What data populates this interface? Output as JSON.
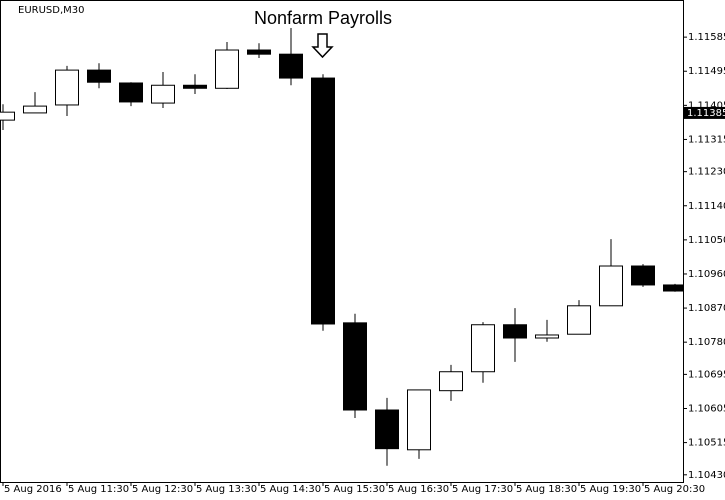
{
  "chart_data": {
    "type": "candlestick",
    "symbol_label": "EURUSD,M30",
    "annotation": "Nonfarm Payrolls",
    "categories": [
      "5 Aug 2016",
      null,
      "5 Aug 11:30",
      null,
      "5 Aug 12:30",
      null,
      "5 Aug 13:30",
      null,
      "5 Aug 14:30",
      null,
      "5 Aug 15:30",
      null,
      "5 Aug 16:30",
      null,
      "5 Aug 17:30",
      null,
      "5 Aug 18:30",
      null,
      "5 Aug 19:30",
      null,
      "5 Aug 20:30",
      null
    ],
    "open": [
      1.11366,
      1.11385,
      1.11406,
      1.11498,
      1.11464,
      1.11411,
      1.11458,
      1.1145,
      1.11551,
      1.1154,
      1.11477,
      1.10831,
      1.10601,
      1.10496,
      1.10652,
      1.10702,
      1.10826,
      1.10791,
      1.10801,
      1.10876,
      1.10981,
      1.10931
    ],
    "high": [
      1.11408,
      1.1144,
      1.11509,
      1.11516,
      1.11466,
      1.11493,
      1.11487,
      1.11572,
      1.11569,
      1.11609,
      1.11487,
      1.10855,
      1.10633,
      1.10654,
      1.1072,
      1.10833,
      1.1087,
      1.10839,
      1.10891,
      1.11052,
      1.10986,
      1.10934
    ],
    "low": [
      1.1134,
      1.11385,
      1.11377,
      1.1145,
      1.11403,
      1.11398,
      1.11435,
      1.11448,
      1.1153,
      1.11458,
      1.1081,
      1.1058,
      1.10454,
      1.10472,
      1.10625,
      1.10673,
      1.10728,
      1.10781,
      1.10801,
      1.10876,
      1.10926,
      1.10913
    ],
    "close": [
      1.11387,
      1.11403,
      1.11498,
      1.11466,
      1.11414,
      1.11458,
      1.1145,
      1.11551,
      1.1154,
      1.11477,
      1.10828,
      1.10601,
      1.10499,
      1.10654,
      1.10702,
      1.10826,
      1.10791,
      1.10799,
      1.10876,
      1.10981,
      1.10931,
      1.10915
    ],
    "up_color": "#ffffff",
    "down_color": "#000000",
    "ylim": [
      1.10411,
      1.11683
    ],
    "yticks": [
      1.11585,
      1.11495,
      1.11405,
      1.11315,
      {
        "value": 1.1123,
        "label": "1.11230"
      },
      {
        "value": 1.1114,
        "label": "1.11140"
      },
      {
        "value": 1.1105,
        "label": "1.11050"
      },
      {
        "value": 1.1096,
        "label": "1.10960"
      },
      {
        "value": 1.1087,
        "label": "1.10870"
      },
      {
        "value": 1.1078,
        "label": "1.10780"
      },
      1.10695,
      1.10605,
      1.10515,
      {
        "value": 1.1043,
        "label": "1.10430"
      }
    ],
    "price_marker": 1.11385
  }
}
